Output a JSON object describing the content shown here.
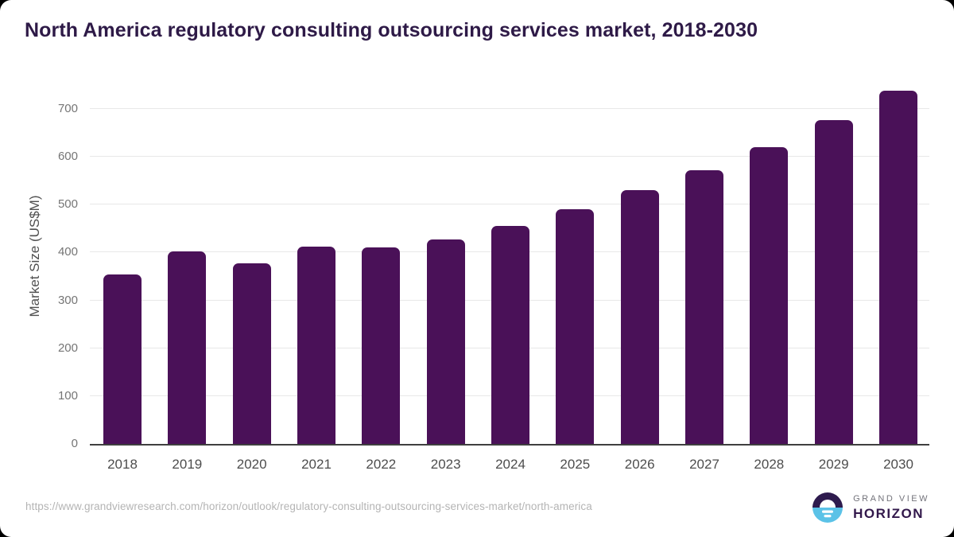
{
  "chart": {
    "title": "North America regulatory consulting outsourcing services market, 2018-2030",
    "y_axis_label": "Market Size (US$M)"
  },
  "chart_data": {
    "type": "bar",
    "title": "North America regulatory consulting outsourcing services market, 2018-2030",
    "categories": [
      "2018",
      "2019",
      "2020",
      "2021",
      "2022",
      "2023",
      "2024",
      "2025",
      "2026",
      "2027",
      "2028",
      "2029",
      "2030"
    ],
    "values": [
      355,
      402,
      378,
      412,
      410,
      428,
      455,
      490,
      530,
      572,
      621,
      676,
      739
    ],
    "xlabel": "",
    "ylabel": "Market Size (US$M)",
    "ylim": [
      0,
      750
    ],
    "yticks": [
      0,
      100,
      200,
      300,
      400,
      500,
      600,
      700
    ],
    "grid": true,
    "legend": false,
    "bar_color": "#4a1158"
  },
  "colors": {
    "title_text": "#2e1a47",
    "bar": "#4a1158",
    "gridline": "#e8e8e8",
    "axis_line": "#3f3f3f",
    "y_tick_text": "#757575",
    "x_tick_text": "#4d4d4d",
    "url_text": "#b4b4b4",
    "logo_blue": "#5bc2e7",
    "logo_purple": "#2e1b4e"
  },
  "footer": {
    "source_url": "https://www.grandviewresearch.com/horizon/outlook/regulatory-consulting-outsourcing-services-market/north-america",
    "logo": {
      "top_text": "GRAND VIEW",
      "bottom_text": "HORIZON"
    }
  }
}
